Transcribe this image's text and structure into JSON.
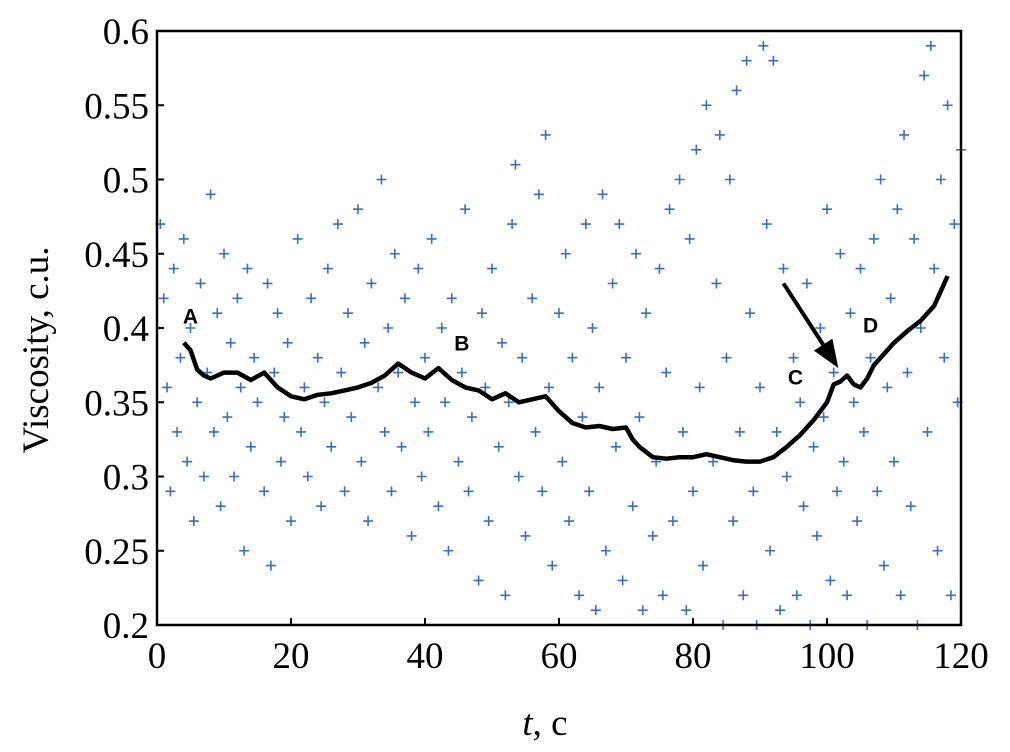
{
  "chart_data": {
    "type": "scatter",
    "title": "",
    "xlabel_italic": "t",
    "xlabel_rest": ", c",
    "ylabel": "Viscosity, c.u.",
    "xlim": [
      0,
      120
    ],
    "ylim": [
      0.2,
      0.6
    ],
    "x_ticks": [
      "0",
      "20",
      "40",
      "60",
      "80",
      "100",
      "120"
    ],
    "y_ticks": [
      "0.2",
      "0.25",
      "0.3",
      "0.35",
      "0.4",
      "0.45",
      "0.5",
      "0.55",
      "0.6"
    ],
    "grid": false,
    "legend": "none",
    "colors": {
      "scatter": "#3a6ec4",
      "trend": "#000000"
    },
    "series": [
      {
        "kind": "scatter",
        "marker": "plus",
        "points": [
          [
            0.5,
            0.47
          ],
          [
            1,
            0.42
          ],
          [
            1.5,
            0.36
          ],
          [
            2,
            0.29
          ],
          [
            2.5,
            0.44
          ],
          [
            3,
            0.33
          ],
          [
            3.5,
            0.38
          ],
          [
            4,
            0.46
          ],
          [
            4.5,
            0.31
          ],
          [
            5,
            0.4
          ],
          [
            5.5,
            0.27
          ],
          [
            6,
            0.35
          ],
          [
            6.5,
            0.43
          ],
          [
            7,
            0.3
          ],
          [
            7.5,
            0.37
          ],
          [
            8,
            0.49
          ],
          [
            8.5,
            0.33
          ],
          [
            9,
            0.41
          ],
          [
            9.5,
            0.28
          ],
          [
            10,
            0.45
          ],
          [
            10.5,
            0.34
          ],
          [
            11,
            0.39
          ],
          [
            11.5,
            0.3
          ],
          [
            12,
            0.42
          ],
          [
            12.5,
            0.36
          ],
          [
            13,
            0.25
          ],
          [
            13.5,
            0.44
          ],
          [
            14,
            0.32
          ],
          [
            14.5,
            0.38
          ],
          [
            15,
            0.35
          ],
          [
            16,
            0.29
          ],
          [
            16.5,
            0.43
          ],
          [
            17,
            0.24
          ],
          [
            17.5,
            0.37
          ],
          [
            18,
            0.41
          ],
          [
            18.5,
            0.31
          ],
          [
            19,
            0.34
          ],
          [
            19.5,
            0.39
          ],
          [
            20,
            0.27
          ],
          [
            21,
            0.46
          ],
          [
            21.5,
            0.33
          ],
          [
            22,
            0.36
          ],
          [
            22.5,
            0.3
          ],
          [
            23,
            0.42
          ],
          [
            24,
            0.38
          ],
          [
            24.5,
            0.28
          ],
          [
            25,
            0.35
          ],
          [
            25.5,
            0.44
          ],
          [
            26,
            0.32
          ],
          [
            27,
            0.47
          ],
          [
            27.5,
            0.37
          ],
          [
            28,
            0.29
          ],
          [
            28.5,
            0.41
          ],
          [
            29,
            0.34
          ],
          [
            30,
            0.48
          ],
          [
            30.5,
            0.31
          ],
          [
            31,
            0.39
          ],
          [
            31.5,
            0.27
          ],
          [
            32,
            0.43
          ],
          [
            33,
            0.36
          ],
          [
            33.5,
            0.5
          ],
          [
            34,
            0.33
          ],
          [
            34.5,
            0.4
          ],
          [
            35,
            0.29
          ],
          [
            35.5,
            0.45
          ],
          [
            36,
            0.37
          ],
          [
            36.5,
            0.32
          ],
          [
            37,
            0.42
          ],
          [
            38,
            0.26
          ],
          [
            38.5,
            0.35
          ],
          [
            39,
            0.44
          ],
          [
            39.5,
            0.3
          ],
          [
            40,
            0.38
          ],
          [
            40.5,
            0.33
          ],
          [
            41,
            0.46
          ],
          [
            42,
            0.28
          ],
          [
            42.5,
            0.4
          ],
          [
            43,
            0.35
          ],
          [
            43.5,
            0.25
          ],
          [
            44,
            0.42
          ],
          [
            45,
            0.31
          ],
          [
            45.5,
            0.37
          ],
          [
            46,
            0.48
          ],
          [
            46.5,
            0.29
          ],
          [
            47,
            0.34
          ],
          [
            48,
            0.23
          ],
          [
            48.5,
            0.41
          ],
          [
            49,
            0.36
          ],
          [
            49.5,
            0.27
          ],
          [
            50,
            0.44
          ],
          [
            51,
            0.32
          ],
          [
            51.5,
            0.39
          ],
          [
            52,
            0.22
          ],
          [
            52.5,
            0.35
          ],
          [
            53,
            0.47
          ],
          [
            53.5,
            0.51
          ],
          [
            54,
            0.3
          ],
          [
            54.5,
            0.38
          ],
          [
            55,
            0.26
          ],
          [
            56,
            0.42
          ],
          [
            56.5,
            0.33
          ],
          [
            57,
            0.49
          ],
          [
            57.5,
            0.29
          ],
          [
            58,
            0.53
          ],
          [
            58.5,
            0.36
          ],
          [
            59,
            0.24
          ],
          [
            60,
            0.41
          ],
          [
            60.5,
            0.31
          ],
          [
            61,
            0.45
          ],
          [
            61.5,
            0.27
          ],
          [
            62,
            0.38
          ],
          [
            63,
            0.22
          ],
          [
            63.5,
            0.34
          ],
          [
            64,
            0.47
          ],
          [
            64.5,
            0.29
          ],
          [
            65,
            0.4
          ],
          [
            65.5,
            0.21
          ],
          [
            66,
            0.36
          ],
          [
            66.5,
            0.49
          ],
          [
            67,
            0.25
          ],
          [
            68,
            0.43
          ],
          [
            68.5,
            0.32
          ],
          [
            69,
            0.47
          ],
          [
            69.5,
            0.23
          ],
          [
            70,
            0.38
          ],
          [
            71,
            0.28
          ],
          [
            71.5,
            0.45
          ],
          [
            72,
            0.34
          ],
          [
            72.5,
            0.21
          ],
          [
            73,
            0.41
          ],
          [
            74,
            0.26
          ],
          [
            74.5,
            0.31
          ],
          [
            75,
            0.44
          ],
          [
            75.5,
            0.22
          ],
          [
            76,
            0.37
          ],
          [
            76.5,
            0.48
          ],
          [
            77,
            0.27
          ],
          [
            78,
            0.5
          ],
          [
            78.5,
            0.33
          ],
          [
            79,
            0.21
          ],
          [
            79.5,
            0.46
          ],
          [
            80,
            0.29
          ],
          [
            80.5,
            0.52
          ],
          [
            81,
            0.36
          ],
          [
            81.5,
            0.24
          ],
          [
            82,
            0.55
          ],
          [
            83,
            0.31
          ],
          [
            83.5,
            0.43
          ],
          [
            84,
            0.53
          ],
          [
            84.5,
            0.2
          ],
          [
            85,
            0.38
          ],
          [
            85.5,
            0.5
          ],
          [
            86,
            0.27
          ],
          [
            86.5,
            0.56
          ],
          [
            87,
            0.33
          ],
          [
            87.5,
            0.22
          ],
          [
            88,
            0.58
          ],
          [
            88.5,
            0.41
          ],
          [
            89,
            0.29
          ],
          [
            89.5,
            0.2
          ],
          [
            90,
            0.36
          ],
          [
            90.5,
            0.59
          ],
          [
            91,
            0.47
          ],
          [
            91.5,
            0.25
          ],
          [
            92,
            0.58
          ],
          [
            92.5,
            0.33
          ],
          [
            93,
            0.21
          ],
          [
            93.5,
            0.44
          ],
          [
            94,
            0.3
          ],
          [
            95,
            0.38
          ],
          [
            95.5,
            0.22
          ],
          [
            96,
            0.35
          ],
          [
            96.5,
            0.28
          ],
          [
            97,
            0.43
          ],
          [
            97.5,
            0.2
          ],
          [
            98,
            0.32
          ],
          [
            98.5,
            0.26
          ],
          [
            99,
            0.4
          ],
          [
            99.5,
            0.34
          ],
          [
            100,
            0.48
          ],
          [
            100.5,
            0.23
          ],
          [
            101,
            0.37
          ],
          [
            101.5,
            0.29
          ],
          [
            102,
            0.45
          ],
          [
            102.5,
            0.31
          ],
          [
            103,
            0.22
          ],
          [
            103.5,
            0.41
          ],
          [
            104,
            0.35
          ],
          [
            104.5,
            0.27
          ],
          [
            105,
            0.44
          ],
          [
            105.5,
            0.33
          ],
          [
            106,
            0.2
          ],
          [
            106.5,
            0.38
          ],
          [
            107,
            0.46
          ],
          [
            107.5,
            0.29
          ],
          [
            108,
            0.5
          ],
          [
            108.5,
            0.24
          ],
          [
            109,
            0.36
          ],
          [
            109.5,
            0.42
          ],
          [
            110,
            0.31
          ],
          [
            110.5,
            0.48
          ],
          [
            111,
            0.22
          ],
          [
            111.5,
            0.53
          ],
          [
            112,
            0.37
          ],
          [
            112.5,
            0.28
          ],
          [
            113,
            0.46
          ],
          [
            113.5,
            0.2
          ],
          [
            114,
            0.4
          ],
          [
            114.5,
            0.57
          ],
          [
            115,
            0.33
          ],
          [
            115.5,
            0.59
          ],
          [
            116,
            0.44
          ],
          [
            116.5,
            0.25
          ],
          [
            117,
            0.5
          ],
          [
            117.5,
            0.38
          ],
          [
            118,
            0.55
          ],
          [
            118.5,
            0.22
          ],
          [
            119,
            0.47
          ],
          [
            119.5,
            0.35
          ],
          [
            120,
            0.52
          ]
        ]
      },
      {
        "kind": "line",
        "points": [
          [
            4,
            0.39
          ],
          [
            5,
            0.385
          ],
          [
            6,
            0.372
          ],
          [
            7,
            0.368
          ],
          [
            8,
            0.366
          ],
          [
            10,
            0.37
          ],
          [
            12,
            0.37
          ],
          [
            14,
            0.365
          ],
          [
            16,
            0.37
          ],
          [
            18,
            0.36
          ],
          [
            20,
            0.354
          ],
          [
            22,
            0.352
          ],
          [
            24,
            0.355
          ],
          [
            26,
            0.356
          ],
          [
            28,
            0.358
          ],
          [
            30,
            0.36
          ],
          [
            32,
            0.363
          ],
          [
            34,
            0.368
          ],
          [
            36,
            0.376
          ],
          [
            38,
            0.37
          ],
          [
            40,
            0.366
          ],
          [
            42,
            0.373
          ],
          [
            44,
            0.365
          ],
          [
            46,
            0.36
          ],
          [
            48,
            0.358
          ],
          [
            50,
            0.352
          ],
          [
            52,
            0.356
          ],
          [
            54,
            0.35
          ],
          [
            56,
            0.352
          ],
          [
            58,
            0.354
          ],
          [
            60,
            0.344
          ],
          [
            62,
            0.336
          ],
          [
            64,
            0.333
          ],
          [
            66,
            0.334
          ],
          [
            68,
            0.332
          ],
          [
            70,
            0.333
          ],
          [
            71,
            0.325
          ],
          [
            72,
            0.32
          ],
          [
            74,
            0.313
          ],
          [
            76,
            0.312
          ],
          [
            78,
            0.313
          ],
          [
            80,
            0.313
          ],
          [
            82,
            0.315
          ],
          [
            84,
            0.313
          ],
          [
            86,
            0.311
          ],
          [
            88,
            0.31
          ],
          [
            90,
            0.31
          ],
          [
            92,
            0.313
          ],
          [
            94,
            0.32
          ],
          [
            96,
            0.328
          ],
          [
            98,
            0.338
          ],
          [
            100,
            0.35
          ],
          [
            101,
            0.362
          ],
          [
            102,
            0.364
          ],
          [
            103,
            0.368
          ],
          [
            104,
            0.362
          ],
          [
            105,
            0.36
          ],
          [
            106,
            0.366
          ],
          [
            107,
            0.375
          ],
          [
            108,
            0.38
          ],
          [
            110,
            0.39
          ],
          [
            112,
            0.398
          ],
          [
            114,
            0.405
          ],
          [
            116,
            0.415
          ],
          [
            117,
            0.425
          ],
          [
            118,
            0.435
          ]
        ]
      }
    ],
    "annotations": [
      {
        "text": "A",
        "x": 5,
        "y": 0.403
      },
      {
        "text": "B",
        "x": 45.5,
        "y": 0.385
      },
      {
        "text": "C",
        "x": 95.3,
        "y": 0.362
      },
      {
        "text": "D",
        "x": 106.5,
        "y": 0.397
      }
    ],
    "arrow": {
      "from": [
        93.5,
        0.43
      ],
      "to": [
        101.7,
        0.373
      ]
    }
  }
}
